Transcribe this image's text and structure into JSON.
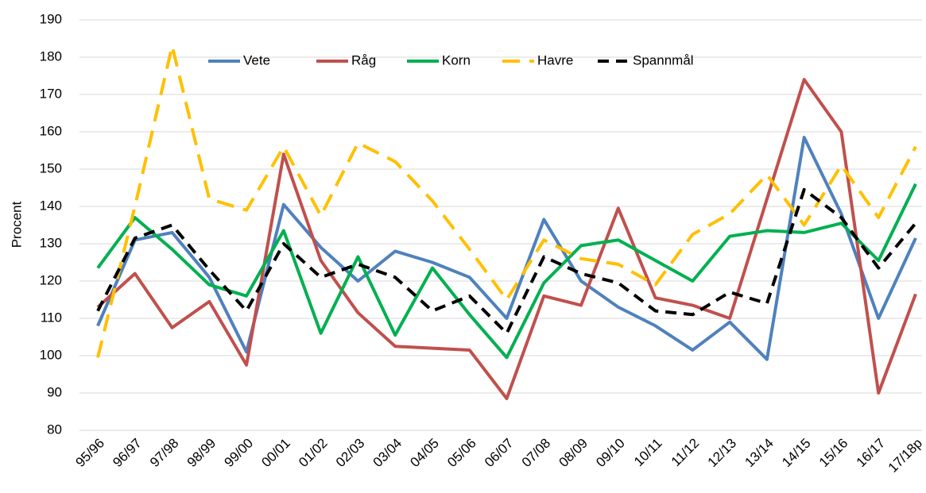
{
  "chart_data": {
    "type": "line",
    "y_label": "Procent",
    "categories": [
      "95/96",
      "96/97",
      "97/98",
      "98/99",
      "99/00",
      "00/01",
      "01/02",
      "02/03",
      "03/04",
      "04/05",
      "05/06",
      "06/07",
      "07/08",
      "08/09",
      "09/10",
      "10/11",
      "11/12",
      "12/13",
      "13/14",
      "14/15",
      "15/16",
      "16/17",
      "17/18p"
    ],
    "series": [
      {
        "name": "Vete",
        "color": "#4f81bd",
        "dash": "solid",
        "values": [
          108,
          131,
          133,
          121,
          101,
          140.5,
          129,
          120,
          128,
          125,
          121,
          110,
          136.5,
          120,
          113,
          108,
          101.5,
          109,
          99,
          158.5,
          138,
          110,
          131.5
        ]
      },
      {
        "name": "Råg",
        "color": "#c0504d",
        "dash": "solid",
        "values": [
          113,
          122,
          107.5,
          114.5,
          97.5,
          154,
          125.5,
          111.5,
          102.5,
          102,
          101.5,
          88.5,
          116,
          113.5,
          139.5,
          115.5,
          113.5,
          110,
          142,
          174,
          160,
          90,
          116.5
        ]
      },
      {
        "name": "Korn",
        "color": "#00b050",
        "dash": "solid",
        "values": [
          123.5,
          137,
          128.5,
          119,
          116,
          133.5,
          106,
          126.5,
          105.5,
          123.5,
          111,
          99.5,
          119.5,
          129.5,
          131,
          125.5,
          120,
          132,
          133.5,
          133,
          135.5,
          125.5,
          146
        ]
      },
      {
        "name": "Havre",
        "color": "#ffc000",
        "dash": "long",
        "values": [
          99.5,
          140,
          183,
          142,
          139,
          156,
          137.5,
          157,
          152,
          141.5,
          128.5,
          115,
          131,
          126,
          124.5,
          119,
          132.5,
          138,
          148.5,
          135,
          151,
          137,
          156
        ]
      },
      {
        "name": "Spannmål",
        "color": "#000000",
        "dash": "short",
        "values": [
          112,
          131.5,
          135,
          123,
          112,
          130,
          121,
          124.5,
          121,
          112,
          116,
          106,
          126.5,
          122,
          119.5,
          112,
          111,
          117,
          114,
          144.5,
          137,
          123.5,
          135.5
        ]
      }
    ],
    "ylim": [
      80,
      190
    ],
    "yticks": [
      80,
      90,
      100,
      110,
      120,
      130,
      140,
      150,
      160,
      170,
      180,
      190
    ],
    "grid": true
  }
}
